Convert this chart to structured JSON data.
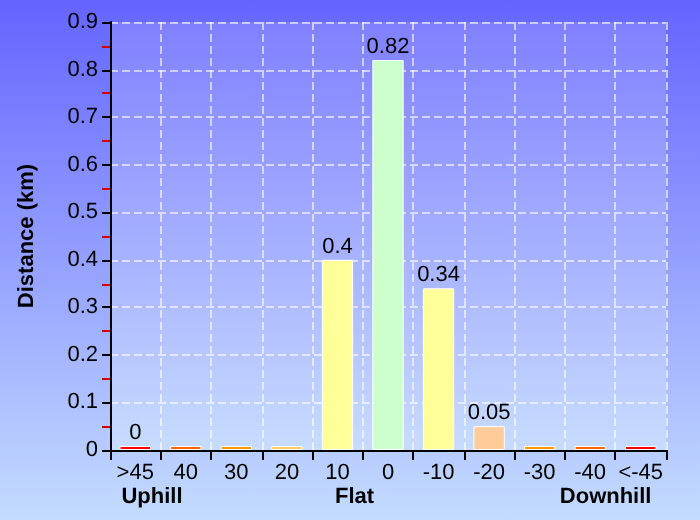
{
  "chart_data": {
    "type": "bar",
    "ylabel": "Distance (km)",
    "categories": [
      ">45",
      "40",
      "30",
      "20",
      "10",
      "0",
      "-10",
      "-20",
      "-30",
      "-40",
      "<-45"
    ],
    "values": [
      0,
      0,
      0,
      0,
      0.4,
      0.82,
      0.34,
      0.05,
      0,
      0,
      0
    ],
    "colors": [
      "#ff0000",
      "#ff6600",
      "#ff9900",
      "#ffcc66",
      "#ffff99",
      "#ccffcc",
      "#ffff99",
      "#ffcc99",
      "#ff9900",
      "#ff6600",
      "#ff0000"
    ],
    "value_labels": [
      "0",
      null,
      null,
      null,
      "0.4",
      "0.82",
      "0.34",
      "0.05",
      null,
      null,
      null
    ],
    "ylim": [
      0,
      0.9
    ],
    "yticks": [
      0,
      0.1,
      0.2,
      0.3,
      0.4,
      0.5,
      0.6,
      0.7,
      0.8,
      0.9
    ],
    "annotations": [
      "Uphill",
      "Flat",
      "Downhill"
    ],
    "grid": true
  }
}
